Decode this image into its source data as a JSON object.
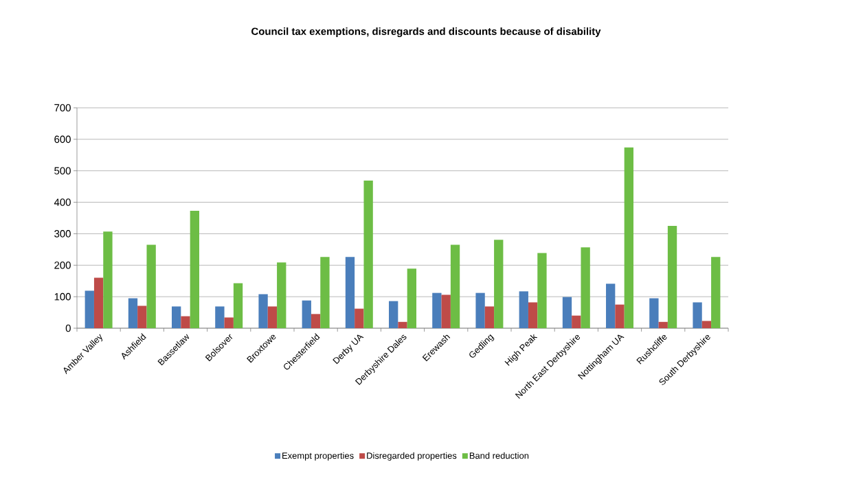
{
  "chart_data": {
    "type": "bar",
    "title": "Council tax exemptions, disregards and discounts because of disability",
    "categories": [
      "Amber Valley",
      "Ashfield",
      "Bassetlaw",
      "Bolsover",
      "Broxtowe",
      "Chesterfield",
      "Derby UA",
      "Derbyshire Dales",
      "Erewash",
      "Gedling",
      "High Peak",
      "North East Derbyshire",
      "Nottingham UA",
      "Rushcliffe",
      "South Derbyshire"
    ],
    "series": [
      {
        "name": "Exempt properties",
        "color": "#4a7ebb",
        "values": [
          119,
          95,
          69,
          69,
          108,
          88,
          226,
          86,
          112,
          112,
          117,
          99,
          141,
          95,
          82
        ]
      },
      {
        "name": "Disregarded properties",
        "color": "#be4b48",
        "values": [
          160,
          71,
          38,
          34,
          69,
          45,
          62,
          20,
          106,
          69,
          82,
          40,
          75,
          20,
          23
        ]
      },
      {
        "name": "Band reduction",
        "color": "#6dbd45",
        "values": [
          307,
          265,
          373,
          143,
          209,
          226,
          469,
          189,
          265,
          281,
          239,
          257,
          574,
          325,
          226
        ]
      }
    ],
    "ylim": [
      0,
      700
    ],
    "yticks": [
      0,
      100,
      200,
      300,
      400,
      500,
      600,
      700
    ],
    "grid": "y",
    "legend": "bottom"
  }
}
